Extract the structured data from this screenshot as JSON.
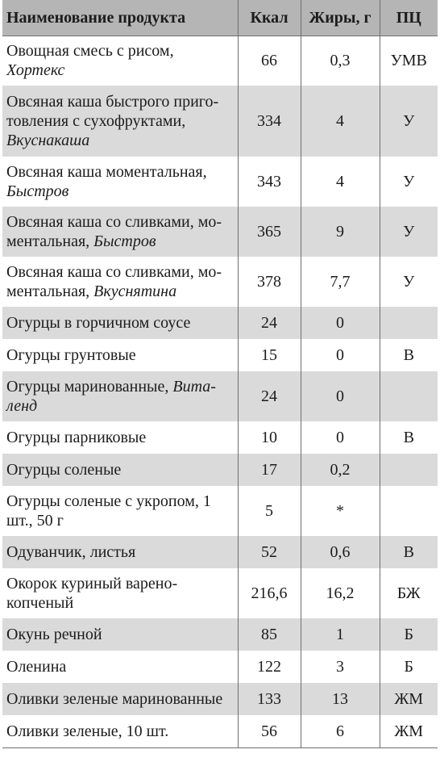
{
  "columns": [
    "Наименование продукта",
    "Ккал",
    "Жиры, г",
    "ПЦ"
  ],
  "rows": [
    {
      "name": "Овощная смесь с рисом,",
      "brand": "Хортекс",
      "kcal": "66",
      "fat": "0,3",
      "pc": "УМВ"
    },
    {
      "name": "Овсяная каша быстрого приго-товления с сухофруктами,",
      "brand": "Вкуснакаша",
      "kcal": "334",
      "fat": "4",
      "pc": "У"
    },
    {
      "name": "Овсяная каша моментальная,",
      "brand": "Быстров",
      "kcal": "343",
      "fat": "4",
      "pc": "У"
    },
    {
      "name": "Овсяная каша со сливками, мо-ментальная,",
      "brand": "Быстров",
      "kcal": "365",
      "fat": "9",
      "pc": "У"
    },
    {
      "name": "Овсяная каша со сливками, мо-ментальная,",
      "brand": "Вкуснятина",
      "kcal": "378",
      "fat": "7,7",
      "pc": "У"
    },
    {
      "name": "Огурцы в горчичном соусе",
      "brand": "",
      "kcal": "24",
      "fat": "0",
      "pc": ""
    },
    {
      "name": "Огурцы грунтовые",
      "brand": "",
      "kcal": "15",
      "fat": "0",
      "pc": "В"
    },
    {
      "name": "Огурцы маринованные,",
      "brand": "Вита-ленд",
      "kcal": "24",
      "fat": "0",
      "pc": ""
    },
    {
      "name": "Огурцы парниковые",
      "brand": "",
      "kcal": "10",
      "fat": "0",
      "pc": "В"
    },
    {
      "name": "Огурцы соленые",
      "brand": "",
      "kcal": "17",
      "fat": "0,2",
      "pc": ""
    },
    {
      "name": "Огурцы соленые с укропом, 1 шт., 50 г",
      "brand": "",
      "kcal": "5",
      "fat": "*",
      "pc": ""
    },
    {
      "name": "Одуванчик, листья",
      "brand": "",
      "kcal": "52",
      "fat": "0,6",
      "pc": "В"
    },
    {
      "name": "Окорок куриный варено-копченый",
      "brand": "",
      "kcal": "216,6",
      "fat": "16,2",
      "pc": "БЖ"
    },
    {
      "name": "Окунь речной",
      "brand": "",
      "kcal": "85",
      "fat": "1",
      "pc": "Б"
    },
    {
      "name": "Оленина",
      "brand": "",
      "kcal": "122",
      "fat": "3",
      "pc": "Б"
    },
    {
      "name": "Оливки зеленые маринованные",
      "brand": "",
      "kcal": "133",
      "fat": "13",
      "pc": "ЖМ"
    },
    {
      "name": "Оливки зеленые, 10 шт.",
      "brand": "",
      "kcal": "56",
      "fat": "6",
      "pc": "ЖМ"
    }
  ]
}
